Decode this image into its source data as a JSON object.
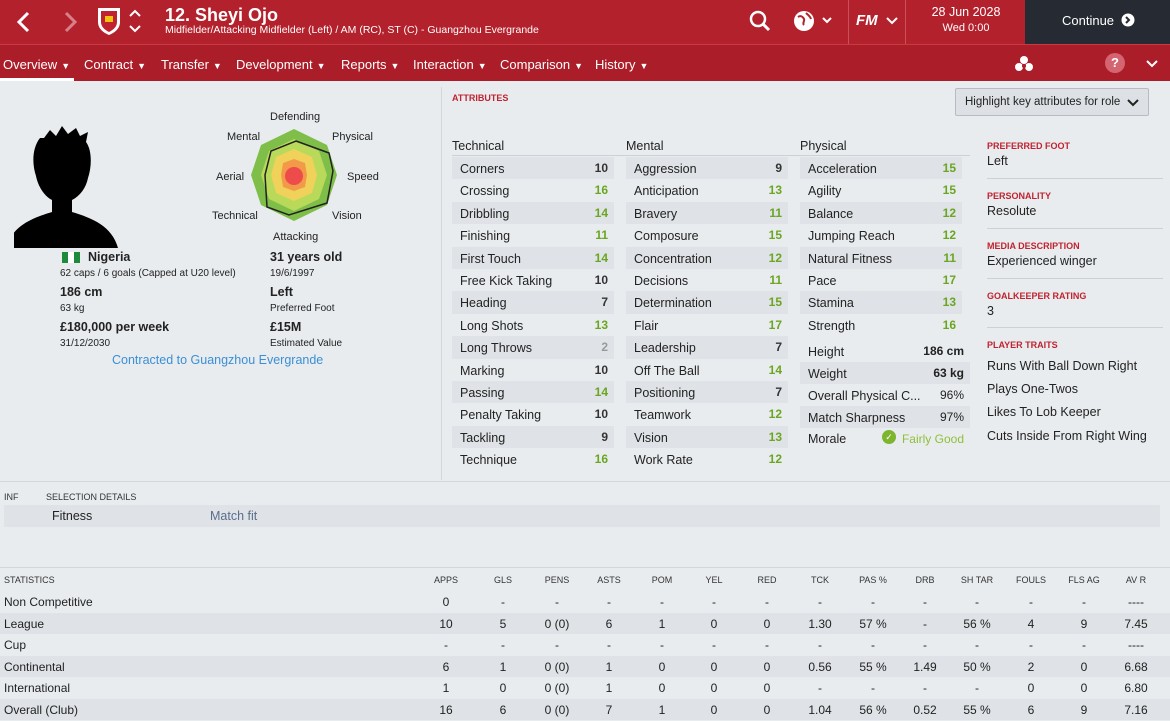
{
  "header": {
    "player_title": "12. Sheyi Ojo",
    "player_subtitle": "Midfielder/Attacking Midfielder (Left) / AM (RC), ST (C) - Guangzhou Evergrande",
    "date": "28 Jun 2028",
    "time": "Wed 0:00",
    "continue_label": "Continue",
    "fm_label": "FM"
  },
  "nav": {
    "tabs": [
      "Overview",
      "Contract",
      "Transfer",
      "Development",
      "Reports",
      "Interaction",
      "Comparison",
      "History"
    ],
    "help": "?"
  },
  "colors": {
    "brand": "#b3212d",
    "good": "#6aa621",
    "dark": "#262b33"
  },
  "profile": {
    "nation": "Nigeria",
    "caps": "62 caps / 6 goals (Capped at U20 level)",
    "age": "31 years old",
    "dob": "19/6/1997",
    "height": "186 cm",
    "weight": "63 kg",
    "foot": "Left",
    "foot_label": "Preferred Foot",
    "wage": "£180,000 per week",
    "contract_end": "31/12/2030",
    "value": "£15M",
    "value_label": "Estimated Value",
    "contract_link": "Contracted to Guangzhou Evergrande"
  },
  "radar": {
    "labels": {
      "defending": "Defending",
      "physical": "Physical",
      "speed": "Speed",
      "vision": "Vision",
      "attacking": "Attacking",
      "technical": "Technical",
      "aerial": "Aerial",
      "mental": "Mental"
    }
  },
  "attributes": {
    "section_label": "ATTRIBUTES",
    "highlight_button": "Highlight key attributes for role",
    "technical_label": "Technical",
    "mental_label": "Mental",
    "physical_label": "Physical",
    "technical": [
      [
        "Corners",
        "10"
      ],
      [
        "Crossing",
        "16"
      ],
      [
        "Dribbling",
        "14"
      ],
      [
        "Finishing",
        "11"
      ],
      [
        "First Touch",
        "14"
      ],
      [
        "Free Kick Taking",
        "10"
      ],
      [
        "Heading",
        "7"
      ],
      [
        "Long Shots",
        "13"
      ],
      [
        "Long Throws",
        "2"
      ],
      [
        "Marking",
        "10"
      ],
      [
        "Passing",
        "14"
      ],
      [
        "Penalty Taking",
        "10"
      ],
      [
        "Tackling",
        "9"
      ],
      [
        "Technique",
        "16"
      ]
    ],
    "mental": [
      [
        "Aggression",
        "9"
      ],
      [
        "Anticipation",
        "13"
      ],
      [
        "Bravery",
        "11"
      ],
      [
        "Composure",
        "15"
      ],
      [
        "Concentration",
        "12"
      ],
      [
        "Decisions",
        "11"
      ],
      [
        "Determination",
        "15"
      ],
      [
        "Flair",
        "17"
      ],
      [
        "Leadership",
        "7"
      ],
      [
        "Off The Ball",
        "14"
      ],
      [
        "Positioning",
        "7"
      ],
      [
        "Teamwork",
        "12"
      ],
      [
        "Vision",
        "13"
      ],
      [
        "Work Rate",
        "12"
      ]
    ],
    "physical": [
      [
        "Acceleration",
        "15"
      ],
      [
        "Agility",
        "15"
      ],
      [
        "Balance",
        "12"
      ],
      [
        "Jumping Reach",
        "12"
      ],
      [
        "Natural Fitness",
        "11"
      ],
      [
        "Pace",
        "17"
      ],
      [
        "Stamina",
        "13"
      ],
      [
        "Strength",
        "16"
      ]
    ],
    "extra": [
      [
        "Height",
        "186 cm"
      ],
      [
        "Weight",
        "63 kg"
      ],
      [
        "Overall Physical C...",
        "96%"
      ],
      [
        "Match Sharpness",
        "97%"
      ],
      [
        "Morale",
        "Fairly Good"
      ]
    ]
  },
  "right": {
    "foot_label": "PREFERRED FOOT",
    "foot": "Left",
    "personality_label": "PERSONALITY",
    "personality": "Resolute",
    "media_label": "MEDIA DESCRIPTION",
    "media": "Experienced winger",
    "gk_label": "GOALKEEPER RATING",
    "gk": "3",
    "traits_label": "PLAYER TRAITS",
    "traits": [
      "Runs With Ball Down Right",
      "Plays One-Twos",
      "Likes To Lob Keeper",
      "Cuts Inside From Right Wing"
    ]
  },
  "selection": {
    "inf_label": "INF",
    "label": "SELECTION DETAILS",
    "fitness_label": "Fitness",
    "fitness_value": "Match fit"
  },
  "stats": {
    "label": "STATISTICS",
    "columns": [
      "APPS",
      "GLS",
      "PENS",
      "ASTS",
      "POM",
      "YEL",
      "RED",
      "TCK",
      "PAS %",
      "DRB",
      "SH TAR",
      "FOULS",
      "FLS AG",
      "AV R"
    ],
    "rows": [
      [
        "Non Competitive",
        "0",
        "-",
        "-",
        "-",
        "-",
        "-",
        "-",
        "-",
        "-",
        "-",
        "-",
        "-",
        "-",
        "----"
      ],
      [
        "League",
        "10",
        "5",
        "0 (0)",
        "6",
        "1",
        "0",
        "0",
        "1.30",
        "57 %",
        "-",
        "56 %",
        "4",
        "9",
        "7.45"
      ],
      [
        "Cup",
        "-",
        "-",
        "-",
        "-",
        "-",
        "-",
        "-",
        "-",
        "-",
        "-",
        "-",
        "-",
        "-",
        "----"
      ],
      [
        "Continental",
        "6",
        "1",
        "0 (0)",
        "1",
        "0",
        "0",
        "0",
        "0.56",
        "55 %",
        "1.49",
        "50 %",
        "2",
        "0",
        "6.68"
      ],
      [
        "International",
        "1",
        "0",
        "0 (0)",
        "1",
        "0",
        "0",
        "0",
        "-",
        "-",
        "-",
        "-",
        "0",
        "0",
        "6.80"
      ],
      [
        "Overall (Club)",
        "16",
        "6",
        "0 (0)",
        "7",
        "1",
        "0",
        "0",
        "1.04",
        "56 %",
        "0.52",
        "55 %",
        "6",
        "9",
        "7.16"
      ]
    ]
  }
}
